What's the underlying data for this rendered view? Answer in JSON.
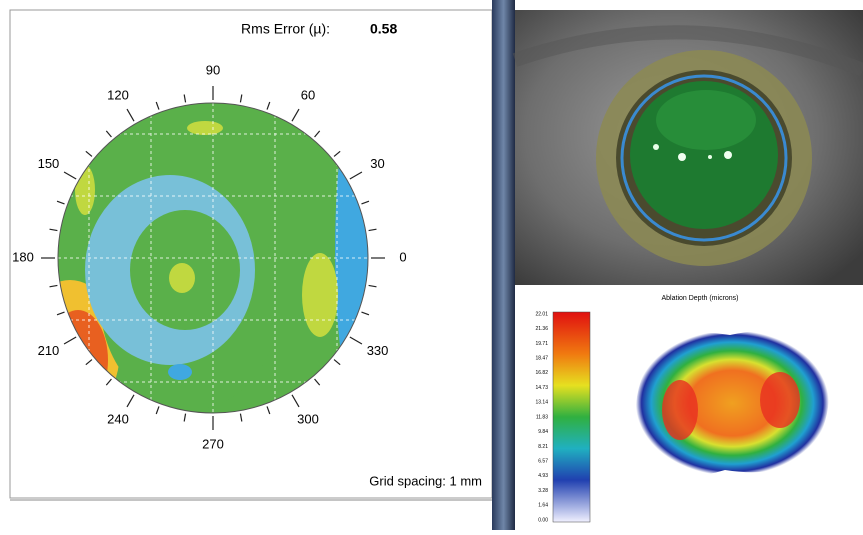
{
  "rms": {
    "label": "Rms Error (µ):",
    "value": "0.58"
  },
  "compass": {
    "labels": [
      "0",
      "30",
      "60",
      "90",
      "120",
      "150",
      "180",
      "210",
      "240",
      "270",
      "300",
      "330"
    ]
  },
  "grid_spacing": "Grid spacing: 1 mm",
  "ablation": {
    "title": "Ablation Depth (microns)",
    "scale": [
      "22.01",
      "21.36",
      "19.71",
      "18.47",
      "16.82",
      "14.73",
      "13.14",
      "11.83",
      "9.84",
      "8.21",
      "6.57",
      "4.93",
      "3.28",
      "1.64",
      "0.00"
    ]
  }
}
